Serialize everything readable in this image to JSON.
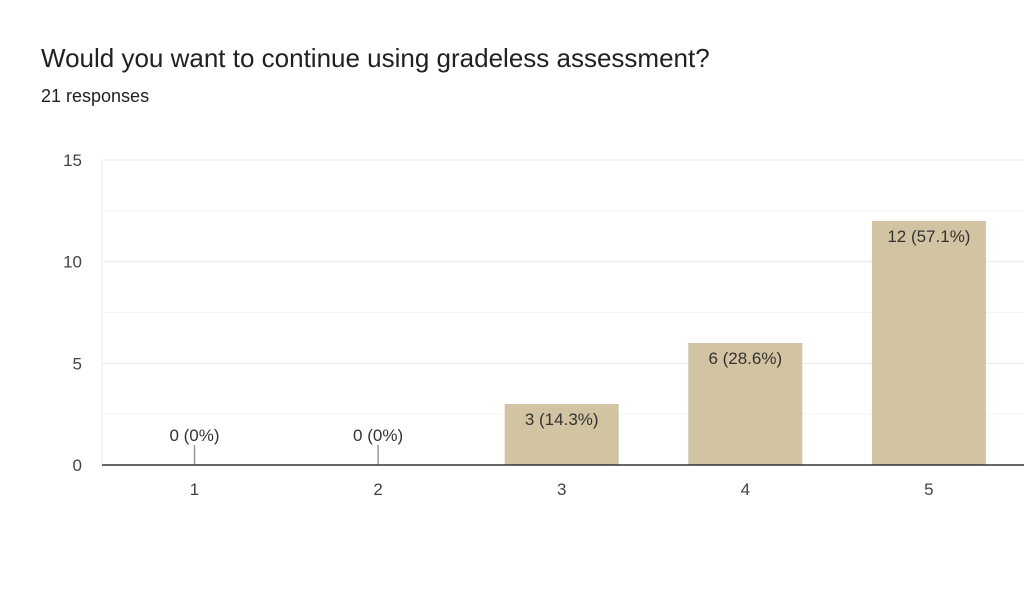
{
  "title": "Would you want to continue using gradeless assessment?",
  "subtitle": "21 responses",
  "colors": {
    "bar": "#d2c3a2",
    "axis": "#333333",
    "grid_major": "#e8e8e8",
    "grid_minor": "#f3f3f3",
    "tick_text": "#444444",
    "label_text": "#333333"
  },
  "chart_data": {
    "type": "bar",
    "title": "Would you want to continue using gradeless assessment?",
    "categories": [
      "1",
      "2",
      "3",
      "4",
      "5"
    ],
    "values": [
      0,
      0,
      3,
      6,
      12
    ],
    "data_labels": [
      "0 (0%)",
      "0 (0%)",
      "3 (14.3%)",
      "6 (28.6%)",
      "12 (57.1%)"
    ],
    "xlabel": "",
    "ylabel": "",
    "ylim": [
      0,
      15
    ],
    "yticks": [
      "0",
      "5",
      "10",
      "15"
    ],
    "grid": true
  }
}
